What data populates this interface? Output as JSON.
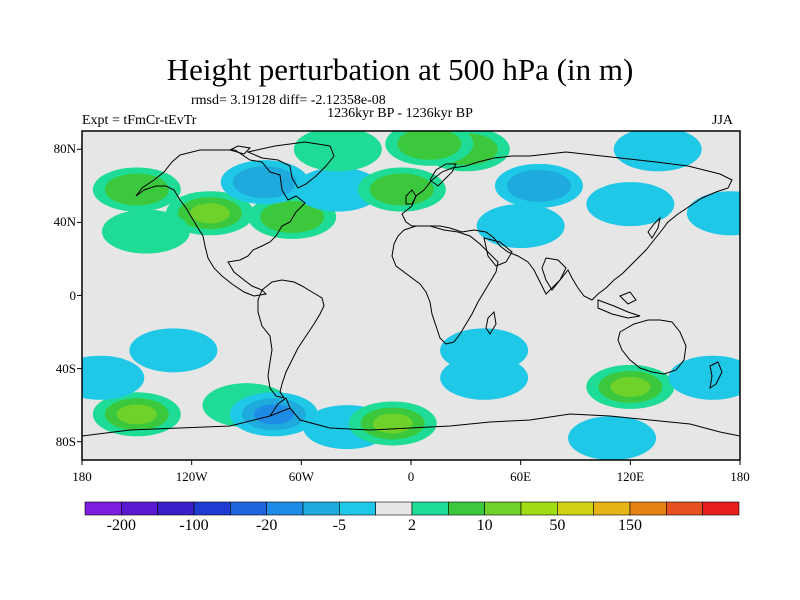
{
  "title": "Height perturbation at 500 hPa (in m)",
  "subtitle_stats": "rmsd= 3.19128 diff= -2.12358e-08",
  "subtitle_period": "1236kyr BP - 1236kyr BP",
  "experiment_label": "Expt = tFmCr-tEvTr",
  "season_label": "JJA",
  "map": {
    "projection": "cylindrical-equidistant",
    "lon_range": [
      -180,
      180
    ],
    "lat_range": [
      -90,
      90
    ],
    "x_ticks": [
      {
        "lon": -180,
        "label": "180"
      },
      {
        "lon": -120,
        "label": "120W"
      },
      {
        "lon": -60,
        "label": "60W"
      },
      {
        "lon": 0,
        "label": "0"
      },
      {
        "lon": 60,
        "label": "60E"
      },
      {
        "lon": 120,
        "label": "120E"
      },
      {
        "lon": 180,
        "label": "180"
      }
    ],
    "y_ticks": [
      {
        "lat": 80,
        "label": "80N"
      },
      {
        "lat": 40,
        "label": "40N"
      },
      {
        "lat": 0,
        "label": "0"
      },
      {
        "lat": -40,
        "label": "40S"
      },
      {
        "lat": -80,
        "label": "80S"
      }
    ],
    "background_color": "#e6e6e6",
    "coastline_color": "#000000"
  },
  "colorbar": {
    "colors": [
      "#7d1ee0",
      "#5a1ad2",
      "#3a1ec8",
      "#1e3cd2",
      "#1e64dc",
      "#1e8ce6",
      "#1eaadc",
      "#1ec8e6",
      "#e6e6e6",
      "#1edc96",
      "#3cc83c",
      "#6ed22a",
      "#a0dc14",
      "#d2d214",
      "#e6b414",
      "#e68214",
      "#e6501e",
      "#e61e1e"
    ],
    "labels": [
      {
        "boundary": 1,
        "text": "-200"
      },
      {
        "boundary": 3,
        "text": "-100"
      },
      {
        "boundary": 5,
        "text": "-20"
      },
      {
        "boundary": 7,
        "text": "-5"
      },
      {
        "boundary": 9,
        "text": "2"
      },
      {
        "boundary": 11,
        "text": "10"
      },
      {
        "boundary": 13,
        "text": "50"
      },
      {
        "boundary": 15,
        "text": "150"
      }
    ]
  },
  "anomalies": [
    {
      "lon": -110,
      "lat": 45,
      "level": 3
    },
    {
      "lon": -150,
      "lat": 58,
      "level": 2
    },
    {
      "lon": -145,
      "lat": 35,
      "level": 1
    },
    {
      "lon": -65,
      "lat": 43,
      "level": 2
    },
    {
      "lon": -80,
      "lat": 62,
      "level": -2
    },
    {
      "lon": -40,
      "lat": 58,
      "level": -1
    },
    {
      "lon": -40,
      "lat": 80,
      "level": 1
    },
    {
      "lon": -5,
      "lat": 58,
      "level": 2
    },
    {
      "lon": 30,
      "lat": 80,
      "level": 2
    },
    {
      "lon": 70,
      "lat": 60,
      "level": -2
    },
    {
      "lon": 60,
      "lat": 38,
      "level": -1
    },
    {
      "lon": 120,
      "lat": 50,
      "level": -1
    },
    {
      "lon": 135,
      "lat": 80,
      "level": -1
    },
    {
      "lon": 175,
      "lat": 45,
      "level": -1
    },
    {
      "lon": 10,
      "lat": 83,
      "level": 2
    },
    {
      "lon": -150,
      "lat": -65,
      "level": 3
    },
    {
      "lon": -170,
      "lat": -45,
      "level": -1
    },
    {
      "lon": -90,
      "lat": -60,
      "level": 1
    },
    {
      "lon": -75,
      "lat": -65,
      "level": -3
    },
    {
      "lon": -35,
      "lat": -72,
      "level": -1
    },
    {
      "lon": -10,
      "lat": -70,
      "level": 3
    },
    {
      "lon": 40,
      "lat": -30,
      "level": -1
    },
    {
      "lon": 40,
      "lat": -45,
      "level": -1
    },
    {
      "lon": 120,
      "lat": -50,
      "level": 3
    },
    {
      "lon": 110,
      "lat": -78,
      "level": -1
    },
    {
      "lon": 165,
      "lat": -45,
      "level": -1
    },
    {
      "lon": -130,
      "lat": -30,
      "level": -1
    }
  ]
}
